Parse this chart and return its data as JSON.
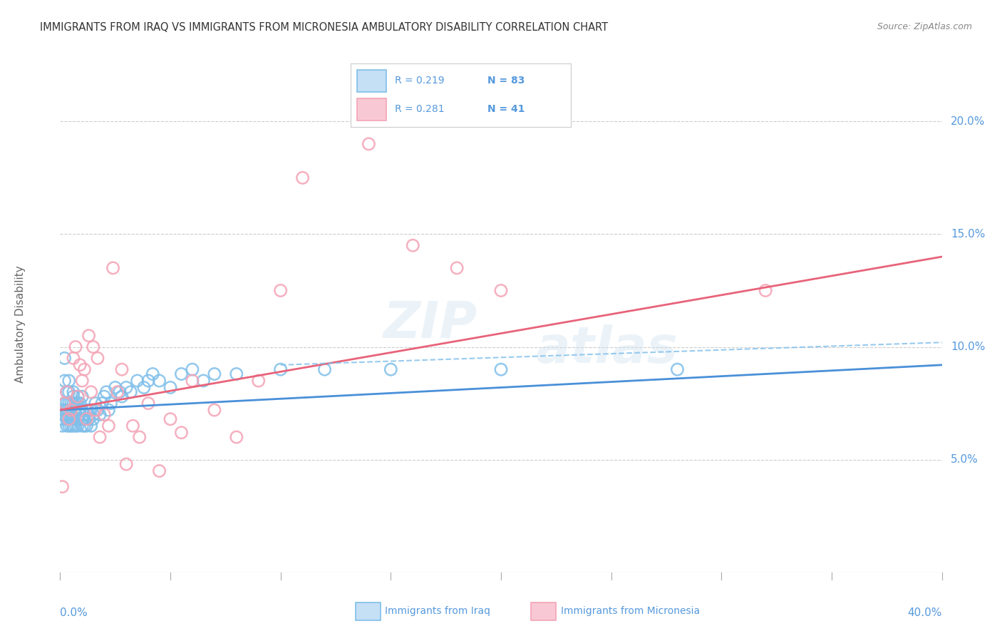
{
  "title": "IMMIGRANTS FROM IRAQ VS IMMIGRANTS FROM MICRONESIA AMBULATORY DISABILITY CORRELATION CHART",
  "source": "Source: ZipAtlas.com",
  "ylabel": "Ambulatory Disability",
  "series": [
    {
      "name": "Immigrants from Iraq",
      "color": "#7fbfea",
      "R": 0.219,
      "N": 83,
      "x": [
        0.001,
        0.001,
        0.001,
        0.002,
        0.002,
        0.002,
        0.002,
        0.003,
        0.003,
        0.003,
        0.003,
        0.003,
        0.003,
        0.004,
        0.004,
        0.004,
        0.004,
        0.004,
        0.005,
        0.005,
        0.005,
        0.005,
        0.005,
        0.006,
        0.006,
        0.006,
        0.006,
        0.006,
        0.007,
        0.007,
        0.007,
        0.007,
        0.008,
        0.008,
        0.008,
        0.008,
        0.009,
        0.009,
        0.009,
        0.01,
        0.01,
        0.01,
        0.01,
        0.011,
        0.011,
        0.011,
        0.012,
        0.012,
        0.013,
        0.013,
        0.014,
        0.014,
        0.015,
        0.015,
        0.016,
        0.017,
        0.018,
        0.019,
        0.02,
        0.021,
        0.022,
        0.023,
        0.025,
        0.027,
        0.028,
        0.03,
        0.032,
        0.035,
        0.038,
        0.04,
        0.042,
        0.045,
        0.05,
        0.055,
        0.06,
        0.065,
        0.07,
        0.08,
        0.1,
        0.12,
        0.15,
        0.2,
        0.28
      ],
      "y": [
        0.072,
        0.065,
        0.068,
        0.095,
        0.085,
        0.075,
        0.07,
        0.08,
        0.075,
        0.07,
        0.065,
        0.068,
        0.072,
        0.075,
        0.08,
        0.085,
        0.065,
        0.07,
        0.075,
        0.07,
        0.068,
        0.065,
        0.072,
        0.078,
        0.075,
        0.08,
        0.068,
        0.065,
        0.075,
        0.07,
        0.065,
        0.072,
        0.078,
        0.075,
        0.068,
        0.065,
        0.072,
        0.07,
        0.075,
        0.068,
        0.065,
        0.072,
        0.078,
        0.07,
        0.065,
        0.068,
        0.072,
        0.065,
        0.068,
        0.07,
        0.065,
        0.072,
        0.07,
        0.068,
        0.075,
        0.072,
        0.07,
        0.075,
        0.078,
        0.08,
        0.072,
        0.075,
        0.082,
        0.08,
        0.078,
        0.082,
        0.08,
        0.085,
        0.082,
        0.085,
        0.088,
        0.085,
        0.082,
        0.088,
        0.09,
        0.085,
        0.088,
        0.088,
        0.09,
        0.09,
        0.09,
        0.09,
        0.09
      ]
    },
    {
      "name": "Immigrants from Micronesia",
      "color": "#f4a3b5",
      "R": 0.281,
      "N": 41,
      "x": [
        0.001,
        0.002,
        0.003,
        0.004,
        0.005,
        0.006,
        0.007,
        0.008,
        0.009,
        0.01,
        0.011,
        0.012,
        0.013,
        0.014,
        0.015,
        0.016,
        0.017,
        0.018,
        0.02,
        0.022,
        0.024,
        0.026,
        0.028,
        0.03,
        0.033,
        0.036,
        0.04,
        0.045,
        0.05,
        0.055,
        0.06,
        0.07,
        0.08,
        0.09,
        0.1,
        0.11,
        0.14,
        0.16,
        0.18,
        0.2,
        0.32
      ],
      "y": [
        0.038,
        0.075,
        0.08,
        0.068,
        0.072,
        0.095,
        0.1,
        0.078,
        0.092,
        0.085,
        0.09,
        0.068,
        0.105,
        0.08,
        0.1,
        0.072,
        0.095,
        0.06,
        0.07,
        0.065,
        0.135,
        0.08,
        0.09,
        0.048,
        0.065,
        0.06,
        0.075,
        0.045,
        0.068,
        0.062,
        0.085,
        0.072,
        0.06,
        0.085,
        0.125,
        0.175,
        0.19,
        0.145,
        0.135,
        0.125,
        0.125
      ]
    }
  ],
  "xlim": [
    0.0,
    0.4
  ],
  "ylim": [
    0.0,
    0.22
  ],
  "yticks": [
    0.05,
    0.1,
    0.15,
    0.2
  ],
  "ytick_labels": [
    "5.0%",
    "10.0%",
    "15.0%",
    "20.0%"
  ],
  "watermark_line1": "ZIP",
  "watermark_line2": "atlas",
  "legend_R_iraq": "R = 0.219",
  "legend_N_iraq": "N = 83",
  "legend_R_micro": "R = 0.281",
  "legend_N_micro": "N = 41",
  "iraq_trend_color": "#4a90d9",
  "micro_trend_color": "#e8637a",
  "dashed_color": "#7fbfea",
  "axis_label_color": "#5599dd",
  "title_color": "#333333",
  "background_color": "#ffffff",
  "grid_color": "#cccccc",
  "iraq_trend_start_y": 0.072,
  "iraq_trend_end_y": 0.092,
  "micro_trend_start_y": 0.072,
  "micro_trend_end_y": 0.14
}
